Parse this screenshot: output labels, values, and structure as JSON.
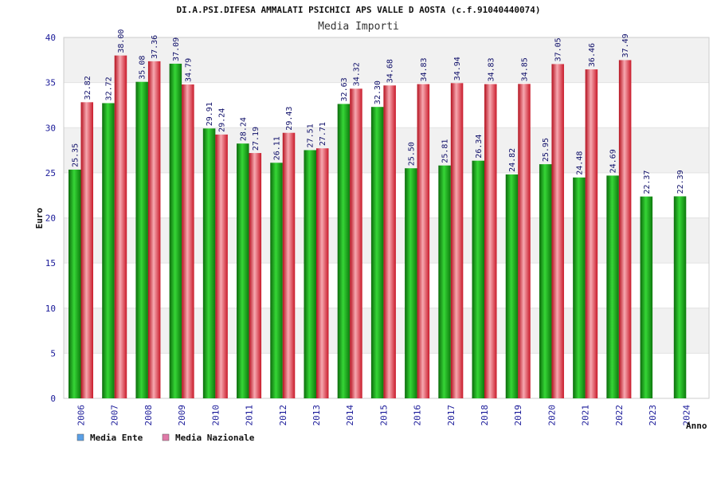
{
  "chart_data": {
    "type": "bar",
    "title": "DI.A.PSI.DIFESA AMMALATI PSICHICI APS VALLE D AOSTA (c.f.91040440074)",
    "subtitle": "Media Importi",
    "xlabel": "Anno",
    "ylabel": "Euro",
    "ylim": [
      0,
      40
    ],
    "yticks": [
      "0",
      "5",
      "10",
      "15",
      "20",
      "25",
      "30",
      "35",
      "40"
    ],
    "categories": [
      "2006",
      "2007",
      "2008",
      "2009",
      "2010",
      "2011",
      "2012",
      "2013",
      "2014",
      "2015",
      "2016",
      "2017",
      "2018",
      "2019",
      "2020",
      "2021",
      "2022",
      "2023",
      "2024"
    ],
    "series": [
      {
        "name": "Media Ente",
        "color": "#1aa11a",
        "legend_color": "#5aa0e6",
        "values": [
          25.35,
          32.72,
          35.08,
          37.09,
          29.91,
          28.24,
          26.11,
          27.51,
          32.63,
          32.3,
          25.5,
          25.81,
          26.34,
          24.82,
          25.95,
          24.48,
          24.69,
          22.37,
          22.39
        ],
        "labels": [
          "25.35",
          "32.72",
          "35.08",
          "37.09",
          "29.91",
          "28.24",
          "26.11",
          "27.51",
          "32.63",
          "32.30",
          "25.50",
          "25.81",
          "26.34",
          "24.82",
          "25.95",
          "24.48",
          "24.69",
          "22.37",
          "22.39"
        ]
      },
      {
        "name": "Media Nazionale",
        "color": "#e03a4a",
        "legend_color": "#e07aa8",
        "values": [
          32.82,
          38.0,
          37.36,
          34.79,
          29.24,
          27.19,
          29.43,
          27.71,
          34.32,
          34.68,
          34.83,
          34.94,
          34.83,
          34.85,
          37.05,
          36.46,
          37.49,
          null,
          null
        ],
        "labels": [
          "32.82",
          "38.00",
          "37.36",
          "34.79",
          "29.24",
          "27.19",
          "29.43",
          "27.71",
          "34.32",
          "34.68",
          "34.83",
          "34.94",
          "34.83",
          "34.85",
          "37.05",
          "36.46",
          "37.49",
          null,
          null
        ]
      }
    ],
    "grid": true,
    "legend_position": "bottom-left"
  }
}
